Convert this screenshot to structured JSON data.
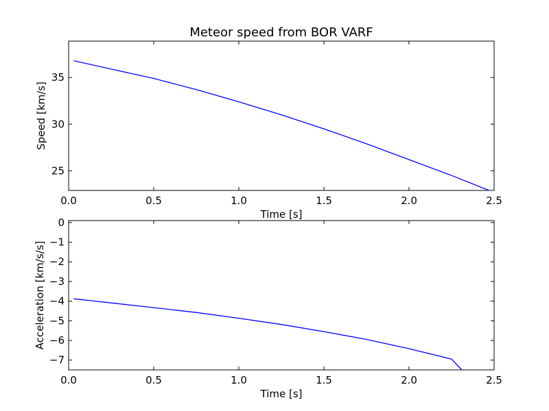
{
  "chart_data": [
    {
      "type": "line",
      "title": "Meteor speed from  BOR VARF",
      "xlabel": "Time [s]",
      "ylabel": "Speed [km/s]",
      "xlim": [
        0,
        2.5
      ],
      "ylim": [
        22.9,
        38.9
      ],
      "xticks": [
        "0.0",
        "0.5",
        "1.0",
        "1.5",
        "2.0",
        "2.5"
      ],
      "yticks": [
        "25",
        "30",
        "35"
      ],
      "ytick_values": [
        25,
        30,
        35
      ],
      "grid": false,
      "color": "#0000ff",
      "series": [
        {
          "x": [
            0.03,
            0.25,
            0.5,
            0.75,
            1.0,
            1.25,
            1.5,
            1.75,
            2.0,
            2.25,
            2.47
          ],
          "values": [
            36.8,
            35.9,
            34.9,
            33.7,
            32.4,
            31.0,
            29.5,
            27.9,
            26.2,
            24.5,
            22.9
          ]
        }
      ]
    },
    {
      "type": "line",
      "title": "",
      "xlabel": "Time [s]",
      "ylabel": "Acceleration [km/s/s]",
      "xlim": [
        0,
        2.5
      ],
      "ylim": [
        -7.5,
        0.1
      ],
      "xticks": [
        "0.0",
        "0.5",
        "1.0",
        "1.5",
        "2.0",
        "2.5"
      ],
      "yticks": [
        "−7",
        "−6",
        "−5",
        "−4",
        "−3",
        "−2",
        "−1",
        "0"
      ],
      "ytick_values": [
        -7,
        -6,
        -5,
        -4,
        -3,
        -2,
        -1,
        0
      ],
      "grid": false,
      "color": "#0000ff",
      "series": [
        {
          "x": [
            0.03,
            0.25,
            0.5,
            0.75,
            1.0,
            1.25,
            1.5,
            1.75,
            2.0,
            2.25,
            2.31
          ],
          "values": [
            -3.88,
            -4.09,
            -4.33,
            -4.58,
            -4.87,
            -5.19,
            -5.55,
            -5.95,
            -6.42,
            -6.95,
            -7.5
          ]
        }
      ]
    }
  ]
}
